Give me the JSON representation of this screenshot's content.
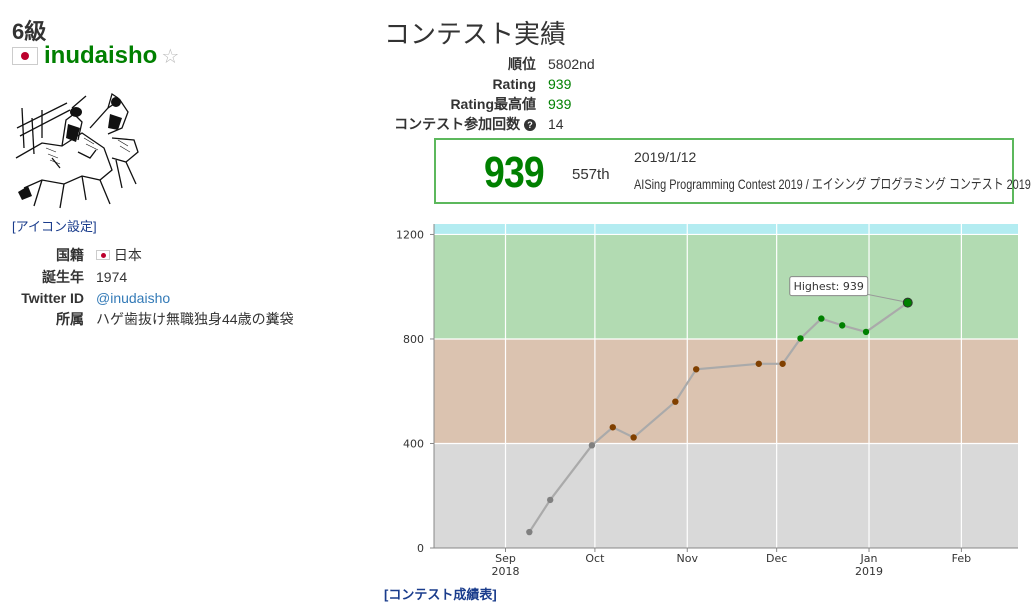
{
  "profile": {
    "kyu": "6級",
    "username": "inudaisho",
    "star": "☆",
    "icon_setting": "[アイコン設定]",
    "info": [
      {
        "key": "国籍",
        "value": "日本",
        "flag": true
      },
      {
        "key": "誕生年",
        "value": "1974"
      },
      {
        "key": "Twitter ID",
        "value": "@inudaisho",
        "link": true
      },
      {
        "key": "所属",
        "value": "ハゲ歯抜け無職独身44歳の糞袋"
      }
    ]
  },
  "contest": {
    "title": "コンテスト実績",
    "stats": [
      {
        "key": "順位",
        "value": "5802nd"
      },
      {
        "key": "Rating",
        "value": "939",
        "green": true
      },
      {
        "key": "Rating最高値",
        "value": "939",
        "green": true
      },
      {
        "key": "コンテスト参加回数",
        "value": "14",
        "help": true
      }
    ],
    "help_icon": "question-circle-icon",
    "status": {
      "rating": "939",
      "rank": "557th",
      "date": "2019/1/12",
      "name": "AISing Programming Contest 2019 / エイシング プログラミング コンテスト 2019"
    },
    "history_link": "[コンテスト成績表]"
  },
  "colors": {
    "cyan_band": "#b3ecf1",
    "green_band": "#b2dbb2",
    "brown_band": "#dbc3b0",
    "gray_band": "#d9d9d9",
    "gray_point": "#808080",
    "brown_point": "#804000",
    "green_point": "#008000",
    "line": "#aaaaaa",
    "user_green": "#008000"
  },
  "chart_data": {
    "type": "line",
    "y_ticks": [
      "1200",
      "800",
      "400",
      "0"
    ],
    "x_ticks": [
      {
        "label": "Sep",
        "sub": "2018",
        "t": 0
      },
      {
        "label": "Oct",
        "sub": "",
        "t": 30
      },
      {
        "label": "Nov",
        "sub": "",
        "t": 61
      },
      {
        "label": "Dec",
        "sub": "",
        "t": 91
      },
      {
        "label": "Jan",
        "sub": "2019",
        "t": 122
      },
      {
        "label": "Feb",
        "sub": "",
        "t": 153
      }
    ],
    "ylim": [
      0,
      1200
    ],
    "points": [
      {
        "t": 8,
        "rating": 61
      },
      {
        "t": 15,
        "rating": 184
      },
      {
        "t": 29,
        "rating": 393
      },
      {
        "t": 36,
        "rating": 462
      },
      {
        "t": 43,
        "rating": 423
      },
      {
        "t": 57,
        "rating": 560
      },
      {
        "t": 64,
        "rating": 684
      },
      {
        "t": 85,
        "rating": 705
      },
      {
        "t": 93,
        "rating": 705
      },
      {
        "t": 99,
        "rating": 802
      },
      {
        "t": 106,
        "rating": 878
      },
      {
        "t": 113,
        "rating": 852
      },
      {
        "t": 121,
        "rating": 827
      },
      {
        "t": 135,
        "rating": 939
      }
    ],
    "highest_label": "Highest: 939"
  }
}
